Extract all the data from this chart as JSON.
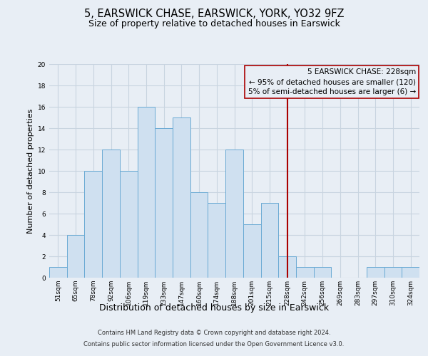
{
  "title": "5, EARSWICK CHASE, EARSWICK, YORK, YO32 9FZ",
  "subtitle": "Size of property relative to detached houses in Earswick",
  "xlabel": "Distribution of detached houses by size in Earswick",
  "ylabel": "Number of detached properties",
  "categories": [
    "51sqm",
    "65sqm",
    "78sqm",
    "92sqm",
    "106sqm",
    "119sqm",
    "133sqm",
    "147sqm",
    "160sqm",
    "174sqm",
    "188sqm",
    "201sqm",
    "215sqm",
    "228sqm",
    "242sqm",
    "256sqm",
    "269sqm",
    "283sqm",
    "297sqm",
    "310sqm",
    "324sqm"
  ],
  "values": [
    1,
    4,
    10,
    12,
    10,
    16,
    14,
    15,
    8,
    7,
    12,
    5,
    7,
    2,
    1,
    1,
    0,
    0,
    1,
    1,
    1
  ],
  "bar_color": "#cfe0f0",
  "bar_edgecolor": "#6aaad4",
  "bar_linewidth": 0.7,
  "redline_index": 13,
  "redline_color": "#aa0000",
  "redline_linewidth": 1.5,
  "ylim": [
    0,
    20
  ],
  "yticks": [
    0,
    2,
    4,
    6,
    8,
    10,
    12,
    14,
    16,
    18,
    20
  ],
  "background_color": "#e8eef5",
  "plot_bg_color": "#e8eef5",
  "grid_color": "#c8d4e0",
  "annotation_lines": [
    "5 EARSWICK CHASE: 228sqm",
    "← 95% of detached houses are smaller (120)",
    "5% of semi-detached houses are larger (6) →"
  ],
  "annotation_box_edgecolor": "#aa0000",
  "footer_line1": "Contains HM Land Registry data © Crown copyright and database right 2024.",
  "footer_line2": "Contains public sector information licensed under the Open Government Licence v3.0.",
  "title_fontsize": 10.5,
  "subtitle_fontsize": 9,
  "xlabel_fontsize": 9,
  "ylabel_fontsize": 8,
  "tick_fontsize": 6.5,
  "footer_fontsize": 6,
  "annotation_fontsize": 7.5
}
